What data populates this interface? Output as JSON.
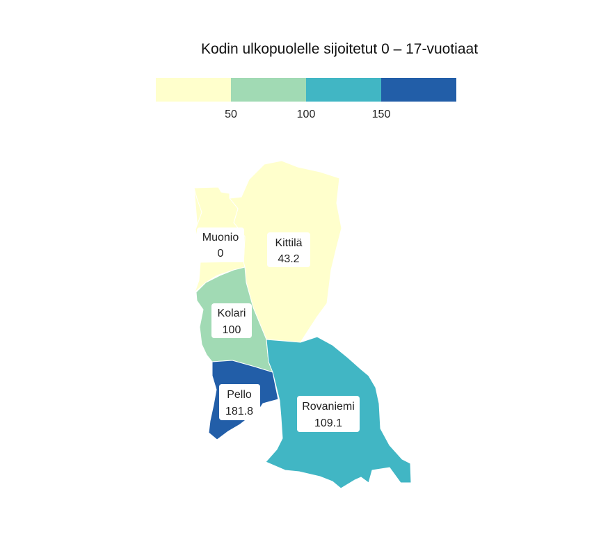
{
  "title": "Kodin ulkopuolelle sijoitetut 0 – 17-vuotiaat",
  "legend": {
    "ticks": [
      "50",
      "100",
      "150"
    ],
    "bins": [
      {
        "from": 0,
        "to": 50,
        "color": "#ffffcc"
      },
      {
        "from": 50,
        "to": 100,
        "color": "#a1dab4"
      },
      {
        "from": 100,
        "to": 150,
        "color": "#41b6c4"
      },
      {
        "from": 150,
        "to": 200,
        "color": "#225ea8"
      }
    ]
  },
  "regions": {
    "muonio": {
      "name": "Muonio",
      "value": "0",
      "color": "#ffffcc"
    },
    "kittila": {
      "name": "Kittilä",
      "value": "43.2",
      "color": "#ffffcc"
    },
    "kolari": {
      "name": "Kolari",
      "value": "100",
      "color": "#a1dab4"
    },
    "pello": {
      "name": "Pello",
      "value": "181.8",
      "color": "#225ea8"
    },
    "rovaniemi": {
      "name": "Rovaniemi",
      "value": "109.1",
      "color": "#41b6c4"
    }
  }
}
